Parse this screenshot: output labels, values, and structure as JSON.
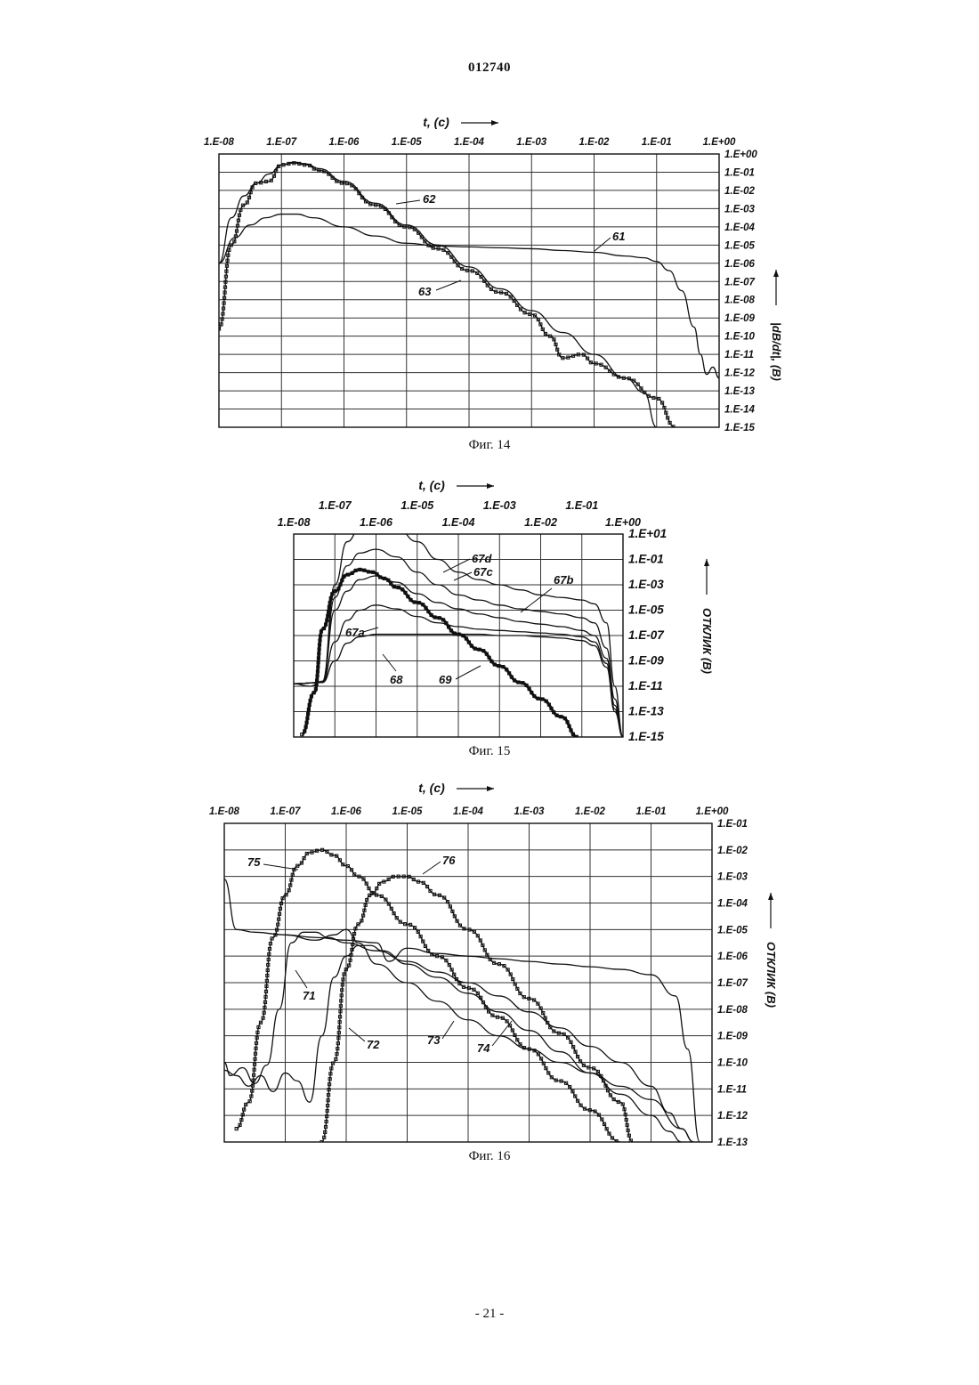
{
  "document": {
    "number": "012740",
    "page_number": "- 21 -"
  },
  "chart_data": [
    {
      "type": "line",
      "caption": "Фиг. 14",
      "x_title": "t, (c)",
      "y_title": "|dB/dt|, (B)",
      "x_scale": "log",
      "y_scale": "log",
      "x_ticks": [
        "1.E-08",
        "1.E-07",
        "1.E-06",
        "1.E-05",
        "1.E-04",
        "1.E-03",
        "1.E-02",
        "1.E-01",
        "1.E+00"
      ],
      "y_ticks": [
        "1.E+00",
        "1.E-01",
        "1.E-02",
        "1.E-03",
        "1.E-04",
        "1.E-05",
        "1.E-06",
        "1.E-07",
        "1.E-08",
        "1.E-09",
        "1.E-10",
        "1.E-11",
        "1.E-12",
        "1.E-13",
        "1.E-14",
        "1.E-15"
      ],
      "xlim_log10": [
        -8,
        0
      ],
      "ylim_log10": [
        -15,
        0
      ],
      "grid": true,
      "series": [
        {
          "name": "61",
          "x_log10": [
            -8,
            -7.75,
            -7.5,
            -7.25,
            -7,
            -6.75,
            -6.5,
            -6,
            -5.5,
            -5,
            -4.5,
            -4,
            -3.5,
            -3,
            -2.5,
            -2,
            -1.5,
            -1.2,
            -1,
            -0.8,
            -0.6,
            -0.4,
            -0.3,
            -0.2,
            -0.1,
            0
          ],
          "y_log10": [
            -6,
            -4.6,
            -3.9,
            -3.5,
            -3.3,
            -3.3,
            -3.5,
            -4,
            -4.5,
            -4.9,
            -5.05,
            -5.1,
            -5.15,
            -5.2,
            -5.3,
            -5.4,
            -5.6,
            -5.7,
            -5.9,
            -6.4,
            -7.5,
            -9.5,
            -11,
            -12.1,
            -11.7,
            -12.3
          ]
        },
        {
          "name": "62",
          "x_log10": [
            -8,
            -7.8,
            -7.6,
            -7.4,
            -7.2,
            -7,
            -6.8,
            -6.6,
            -6.4,
            -6,
            -5.5,
            -5,
            -4.5,
            -4,
            -3.5,
            -3,
            -2.5,
            -2,
            -1.5,
            -1.2,
            -1
          ],
          "y_log10": [
            -6,
            -3.5,
            -2.3,
            -1.6,
            -1.1,
            -0.6,
            -0.45,
            -0.55,
            -0.8,
            -1.5,
            -2.7,
            -3.9,
            -5,
            -6.2,
            -7.4,
            -8.6,
            -9.8,
            -11,
            -12.3,
            -13.1,
            -15
          ]
        },
        {
          "name": "63",
          "x_log10": [
            -8,
            -7.8,
            -7.6,
            -7.4,
            -7.2,
            -7,
            -6.8,
            -6.6,
            -6.4,
            -6,
            -5.5,
            -5,
            -4.5,
            -4,
            -3.5,
            -3,
            -2.7,
            -2.5,
            -2.2,
            -2,
            -1.5,
            -1,
            -0.7
          ],
          "y_log10": [
            -9.6,
            -5,
            -2.8,
            -1.6,
            -1.5,
            -0.6,
            -0.5,
            -0.6,
            -0.9,
            -1.6,
            -2.8,
            -4,
            -5.2,
            -6.4,
            -7.6,
            -8.8,
            -10,
            -11.2,
            -11,
            -11.5,
            -12.3,
            -13.4,
            -15
          ]
        }
      ],
      "annotations": [
        "62",
        "61",
        "63"
      ]
    },
    {
      "type": "line",
      "caption": "Фиг. 15",
      "x_title": "t, (c)",
      "y_title": "ОТКЛИК (В)",
      "x_scale": "log",
      "y_scale": "log",
      "x_ticks_top": [
        "1.E-07",
        "1.E-05",
        "1.E-03",
        "1.E-01"
      ],
      "x_ticks_bottom": [
        "1.E-08",
        "1.E-06",
        "1.E-04",
        "1.E-02",
        "1.E+00"
      ],
      "y_ticks": [
        "1.E+01",
        "1.E-01",
        "1.E-03",
        "1.E-05",
        "1.E-07",
        "1.E-09",
        "1.E-11",
        "1.E-13",
        "1.E-15"
      ],
      "xlim_log10": [
        -8,
        0
      ],
      "ylim_log10": [
        -15,
        1
      ],
      "grid": true,
      "series": [
        {
          "name": "67d",
          "x_log10": [
            -8,
            -7.6,
            -7.3,
            -7,
            -6.7,
            -6.4,
            -6,
            -5.5,
            -5,
            -4.5,
            -4,
            -3.5,
            -3,
            -2.5,
            -2,
            -1.5,
            -1,
            -0.7,
            -0.4,
            -0.2,
            0
          ],
          "y_log10": [
            -10.8,
            -11,
            -10.6,
            -3,
            0.4,
            1.4,
            1.8,
            1.5,
            0.4,
            -1,
            -2,
            -2.6,
            -3,
            -3.4,
            -3.8,
            -4,
            -4.2,
            -4.5,
            -6,
            -11,
            -15
          ]
        },
        {
          "name": "67c",
          "x_log10": [
            -8,
            -7.3,
            -7,
            -6.7,
            -6.4,
            -6,
            -5.5,
            -5,
            -4.5,
            -4,
            -3.5,
            -3,
            -2.5,
            -2,
            -1.5,
            -1,
            -0.7,
            -0.4,
            -0.2,
            0
          ],
          "y_log10": [
            -10.8,
            -10.7,
            -4,
            -1.5,
            -0.5,
            -0.2,
            -0.8,
            -2,
            -3,
            -3.8,
            -4.2,
            -4.6,
            -4.9,
            -5.1,
            -5.3,
            -5.6,
            -6,
            -8,
            -12,
            -15
          ]
        },
        {
          "name": "67b",
          "x_log10": [
            -8,
            -7.3,
            -7,
            -6.7,
            -6.4,
            -6,
            -5.5,
            -5,
            -4.5,
            -4,
            -3.5,
            -3,
            -2.5,
            -2,
            -1.5,
            -1,
            -0.7,
            -0.4,
            -0.2,
            0
          ],
          "y_log10": [
            -10.8,
            -10.7,
            -5,
            -3.5,
            -2.6,
            -2.3,
            -2.8,
            -3.7,
            -4.4,
            -4.9,
            -5.3,
            -5.6,
            -5.9,
            -6.1,
            -6.3,
            -6.6,
            -7,
            -8.8,
            -12.5,
            -15
          ]
        },
        {
          "name": "67a",
          "x_log10": [
            -8,
            -7.3,
            -7,
            -6.7,
            -6.4,
            -6,
            -5.5,
            -5,
            -4.5,
            -4,
            -3.5,
            -3,
            -2.5,
            -2,
            -1.5,
            -1,
            -0.7,
            -0.4,
            -0.2,
            0
          ],
          "y_log10": [
            -10.8,
            -10.7,
            -7.5,
            -5.8,
            -5,
            -4.6,
            -4.9,
            -5.5,
            -6,
            -6.3,
            -6.5,
            -6.6,
            -6.7,
            -6.8,
            -6.9,
            -7.1,
            -7.5,
            -9.2,
            -12.8,
            -15
          ]
        },
        {
          "name": "68",
          "x_log10": [
            -8,
            -7.3,
            -7,
            -6.7,
            -6.4,
            -6,
            -5.5,
            -5,
            -4.5,
            -4,
            -3.5,
            -3,
            -2.5,
            -2,
            -1.5,
            -1,
            -0.7,
            -0.4,
            -0.2,
            0
          ],
          "y_log10": [
            -10.8,
            -10.7,
            -9,
            -7.6,
            -7.1,
            -6.9,
            -6.9,
            -6.9,
            -6.9,
            -6.9,
            -6.9,
            -7,
            -7,
            -7.1,
            -7.2,
            -7.4,
            -7.8,
            -9.5,
            -13,
            -15
          ]
        },
        {
          "name": "69",
          "x_log10": [
            -7.8,
            -7.5,
            -7.3,
            -7,
            -6.7,
            -6.4,
            -6.1,
            -5.8,
            -5.5,
            -5,
            -4.5,
            -4,
            -3.5,
            -3,
            -2.5,
            -2,
            -1.5,
            -1.1
          ],
          "y_log10": [
            -14.8,
            -11.5,
            -6.5,
            -3.5,
            -2.2,
            -1.8,
            -2,
            -2.5,
            -3.2,
            -4.4,
            -5.6,
            -6.9,
            -8.1,
            -9.4,
            -10.7,
            -12,
            -13.4,
            -15
          ]
        }
      ],
      "annotations": [
        "67d",
        "67c",
        "67b",
        "67a",
        "68",
        "69"
      ]
    },
    {
      "type": "line",
      "caption": "Фиг. 16",
      "x_title": "t, (c)",
      "y_title": "ОТКЛИК (В)",
      "x_scale": "log",
      "y_scale": "log",
      "x_ticks": [
        "1.E-08",
        "1.E-07",
        "1.E-06",
        "1.E-05",
        "1.E-04",
        "1.E-03",
        "1.E-02",
        "1.E-01",
        "1.E+00"
      ],
      "y_ticks": [
        "1.E-01",
        "1.E-02",
        "1.E-03",
        "1.E-04",
        "1.E-05",
        "1.E-06",
        "1.E-07",
        "1.E-08",
        "1.E-09",
        "1.E-10",
        "1.E-11",
        "1.E-12",
        "1.E-13"
      ],
      "xlim_log10": [
        -8,
        0
      ],
      "ylim_log10": [
        -13,
        -1
      ],
      "grid": true,
      "series": [
        {
          "name": "71",
          "x_log10": [
            -8,
            -7.9,
            -7.7,
            -7.5,
            -7.3,
            -7.1,
            -6.9,
            -6.7,
            -6.5,
            -6.3,
            -6,
            -5.5,
            -5,
            -4.5,
            -4,
            -3.5,
            -3,
            -2.5,
            -2,
            -1.5,
            -1,
            -0.7,
            -0.5,
            -0.3
          ],
          "y_log10": [
            -10,
            -10.5,
            -10.2,
            -10.8,
            -10.1,
            -8,
            -5.5,
            -5.1,
            -5.1,
            -5.3,
            -5.5,
            -5.8,
            -6.2,
            -6.6,
            -7.0,
            -7.5,
            -8.1,
            -8.7,
            -9.4,
            -10.0,
            -10.9,
            -11.9,
            -12.5,
            -13
          ]
        },
        {
          "name": "72",
          "x_log10": [
            -8,
            -7.8,
            -7.6,
            -7.4,
            -7.2,
            -7,
            -6.8,
            -6.6,
            -6.4,
            -6.2,
            -6,
            -5.8,
            -5.6,
            -5.4,
            -5,
            -4.5,
            -4,
            -3.5,
            -3,
            -2.5,
            -2,
            -1.5,
            -1,
            -0.7,
            -0.5
          ],
          "y_log10": [
            -10.3,
            -10.5,
            -10.9,
            -10.5,
            -11.1,
            -10.4,
            -10.7,
            -11.5,
            -9,
            -6.8,
            -6.0,
            -5.6,
            -5.6,
            -5.8,
            -6.3,
            -6.8,
            -7.4,
            -8.1,
            -8.8,
            -9.6,
            -10.4,
            -11.2,
            -12,
            -12.6,
            -13
          ]
        },
        {
          "name": "73",
          "x_log10": [
            -8,
            -7.8,
            -7.5,
            -7,
            -6.5,
            -6.2,
            -6,
            -5.8,
            -5.5,
            -5,
            -4.5,
            -4,
            -3.5,
            -3,
            -2.5,
            -2,
            -1.5,
            -1,
            -0.5,
            -0.3
          ],
          "y_log10": [
            -3.1,
            -5,
            -5.1,
            -5.2,
            -5.4,
            -5.2,
            -5.0,
            -5.5,
            -6.3,
            -7.0,
            -7.7,
            -8.4,
            -9.0,
            -9.5,
            -10,
            -10.4,
            -10.9,
            -11.4,
            -12.5,
            -13
          ]
        },
        {
          "name": "74",
          "x_log10": [
            -7,
            -6.5,
            -6,
            -5.5,
            -5.3,
            -5,
            -4.5,
            -4,
            -3.5,
            -3,
            -2.5,
            -2,
            -1.5,
            -1,
            -0.6,
            -0.4,
            -0.2
          ],
          "y_log10": [
            -5.2,
            -5.3,
            -5.4,
            -5.5,
            -6.2,
            -5.7,
            -5.9,
            -6.0,
            -6.1,
            -6.2,
            -6.3,
            -6.4,
            -6.5,
            -6.7,
            -7.5,
            -9.5,
            -13
          ]
        },
        {
          "name": "75",
          "x_log10": [
            -7.8,
            -7.6,
            -7.4,
            -7.2,
            -7,
            -6.8,
            -6.6,
            -6.4,
            -6.2,
            -6,
            -5.8,
            -5.5,
            -5,
            -4.5,
            -4,
            -3.5,
            -3,
            -2.5,
            -2,
            -1.5
          ],
          "y_log10": [
            -12.5,
            -11.5,
            -8.5,
            -5.3,
            -3.7,
            -2.6,
            -2.1,
            -2.0,
            -2.2,
            -2.6,
            -3.0,
            -3.7,
            -4.8,
            -6.0,
            -7.2,
            -8.3,
            -9.5,
            -10.7,
            -11.8,
            -13
          ]
        },
        {
          "name": "76",
          "x_log10": [
            -6.4,
            -6.2,
            -6,
            -5.8,
            -5.6,
            -5.4,
            -5.2,
            -5,
            -4.8,
            -4.5,
            -4,
            -3.5,
            -3,
            -2.5,
            -2,
            -1.5,
            -1.3
          ],
          "y_log10": [
            -13,
            -10,
            -6.5,
            -4.8,
            -3.7,
            -3.2,
            -3.0,
            -3.0,
            -3.2,
            -3.7,
            -5.0,
            -6.3,
            -7.6,
            -8.9,
            -10.2,
            -11.5,
            -13
          ]
        }
      ],
      "annotations": [
        "75",
        "76",
        "71",
        "72",
        "73",
        "74"
      ]
    }
  ]
}
